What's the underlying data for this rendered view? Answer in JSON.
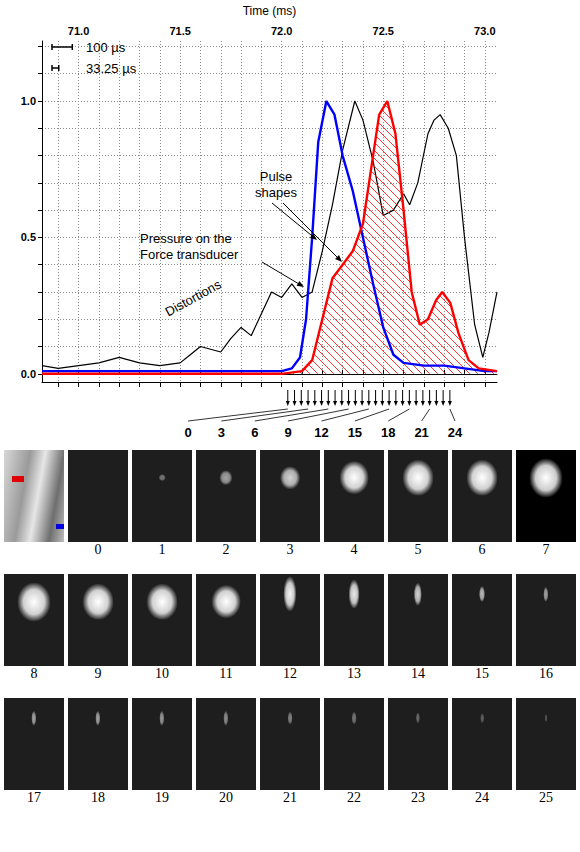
{
  "chart_data": {
    "type": "line",
    "x_label": "Time (ms)",
    "xlim": [
      70.82,
      73.06
    ],
    "xticks": [
      {
        "value": 71,
        "label": "71.0"
      },
      {
        "value": 71.5,
        "label": "71.5"
      },
      {
        "value": 72,
        "label": "72.0"
      },
      {
        "value": 72.5,
        "label": "72.5"
      },
      {
        "value": 73,
        "label": "73.0"
      }
    ],
    "ylim": [
      -0.03,
      1.22
    ],
    "yticks": [
      {
        "value": 0,
        "label": "0.0"
      },
      0.5,
      {
        "value": 1,
        "label": "1.0"
      }
    ],
    "grid": true,
    "series": [
      {
        "color": "#000000",
        "x": [
          70.82,
          70.9,
          71.0,
          71.1,
          71.2,
          71.25,
          71.3,
          71.4,
          71.5,
          71.55,
          71.6,
          71.65,
          71.7,
          71.75,
          71.8,
          71.85,
          71.9,
          71.95,
          72.0,
          72.05,
          72.1,
          72.15,
          72.2,
          72.25,
          72.3,
          72.36,
          72.4,
          72.45,
          72.5,
          72.55,
          72.6,
          72.63,
          72.67,
          72.72,
          72.75,
          72.78,
          72.82,
          72.86,
          72.9,
          72.95,
          72.99,
          73.02,
          73.06
        ],
        "values": [
          0.03,
          0.02,
          0.03,
          0.04,
          0.06,
          0.05,
          0.04,
          0.03,
          0.04,
          0.07,
          0.1,
          0.09,
          0.08,
          0.13,
          0.17,
          0.14,
          0.22,
          0.3,
          0.28,
          0.33,
          0.28,
          0.3,
          0.45,
          0.62,
          0.82,
          1.0,
          0.93,
          0.78,
          0.58,
          0.6,
          0.66,
          0.62,
          0.7,
          0.88,
          0.93,
          0.95,
          0.9,
          0.8,
          0.5,
          0.18,
          0.06,
          0.15,
          0.3
        ]
      },
      {
        "color": "#0000ff",
        "x": [
          70.82,
          71.5,
          72.0,
          72.05,
          72.09,
          72.12,
          72.15,
          72.18,
          72.22,
          72.26,
          72.3,
          72.35,
          72.4,
          72.45,
          72.5,
          72.55,
          72.6,
          72.7,
          72.8,
          72.9,
          73.0,
          73.06
        ],
        "values": [
          0.01,
          0.01,
          0.01,
          0.02,
          0.06,
          0.2,
          0.5,
          0.85,
          1.0,
          0.95,
          0.8,
          0.67,
          0.5,
          0.33,
          0.17,
          0.07,
          0.04,
          0.03,
          0.03,
          0.02,
          0.01,
          0.01
        ]
      },
      {
        "color": "#ff0000",
        "x": [
          70.82,
          72.0,
          72.1,
          72.15,
          72.2,
          72.25,
          72.3,
          72.35,
          72.4,
          72.45,
          72.48,
          72.52,
          72.56,
          72.6,
          72.64,
          72.68,
          72.72,
          72.76,
          72.79,
          72.83,
          72.87,
          72.92,
          72.97,
          73.06
        ],
        "values": [
          0.0,
          0.0,
          0.01,
          0.05,
          0.2,
          0.35,
          0.4,
          0.45,
          0.55,
          0.8,
          0.95,
          1.0,
          0.88,
          0.6,
          0.3,
          0.18,
          0.2,
          0.27,
          0.3,
          0.26,
          0.15,
          0.05,
          0.02,
          0.01
        ]
      }
    ],
    "annotations": [
      {
        "text": "Pulse shapes"
      },
      {
        "text": "Pressure on the Force transducer"
      },
      {
        "text": "Distortions"
      }
    ],
    "scale_bars": [
      {
        "label": "100 µs",
        "length": 0.1
      },
      {
        "label": "33.25 µs",
        "length": 0.03325
      }
    ],
    "frame_markers": {
      "x": [
        72.03,
        72.0633,
        72.0965,
        72.1298,
        72.163,
        72.1963,
        72.2295,
        72.2628,
        72.296,
        72.3293,
        72.3625,
        72.3958,
        72.429,
        72.4623,
        72.4955,
        72.5288,
        72.562,
        72.5953,
        72.6285,
        72.6618,
        72.695,
        72.7283,
        72.7615,
        72.7948,
        72.828
      ],
      "labels": [
        0,
        null,
        null,
        3,
        null,
        null,
        6,
        null,
        null,
        9,
        null,
        null,
        12,
        null,
        null,
        15,
        null,
        null,
        18,
        null,
        null,
        21,
        null,
        null,
        24
      ]
    }
  },
  "frames": {
    "labels": [
      0,
      1,
      2,
      3,
      4,
      5,
      6,
      7,
      8,
      9,
      10,
      11,
      12,
      13,
      14,
      15,
      16,
      17,
      18,
      19,
      20,
      21,
      22,
      23,
      24,
      25
    ]
  }
}
